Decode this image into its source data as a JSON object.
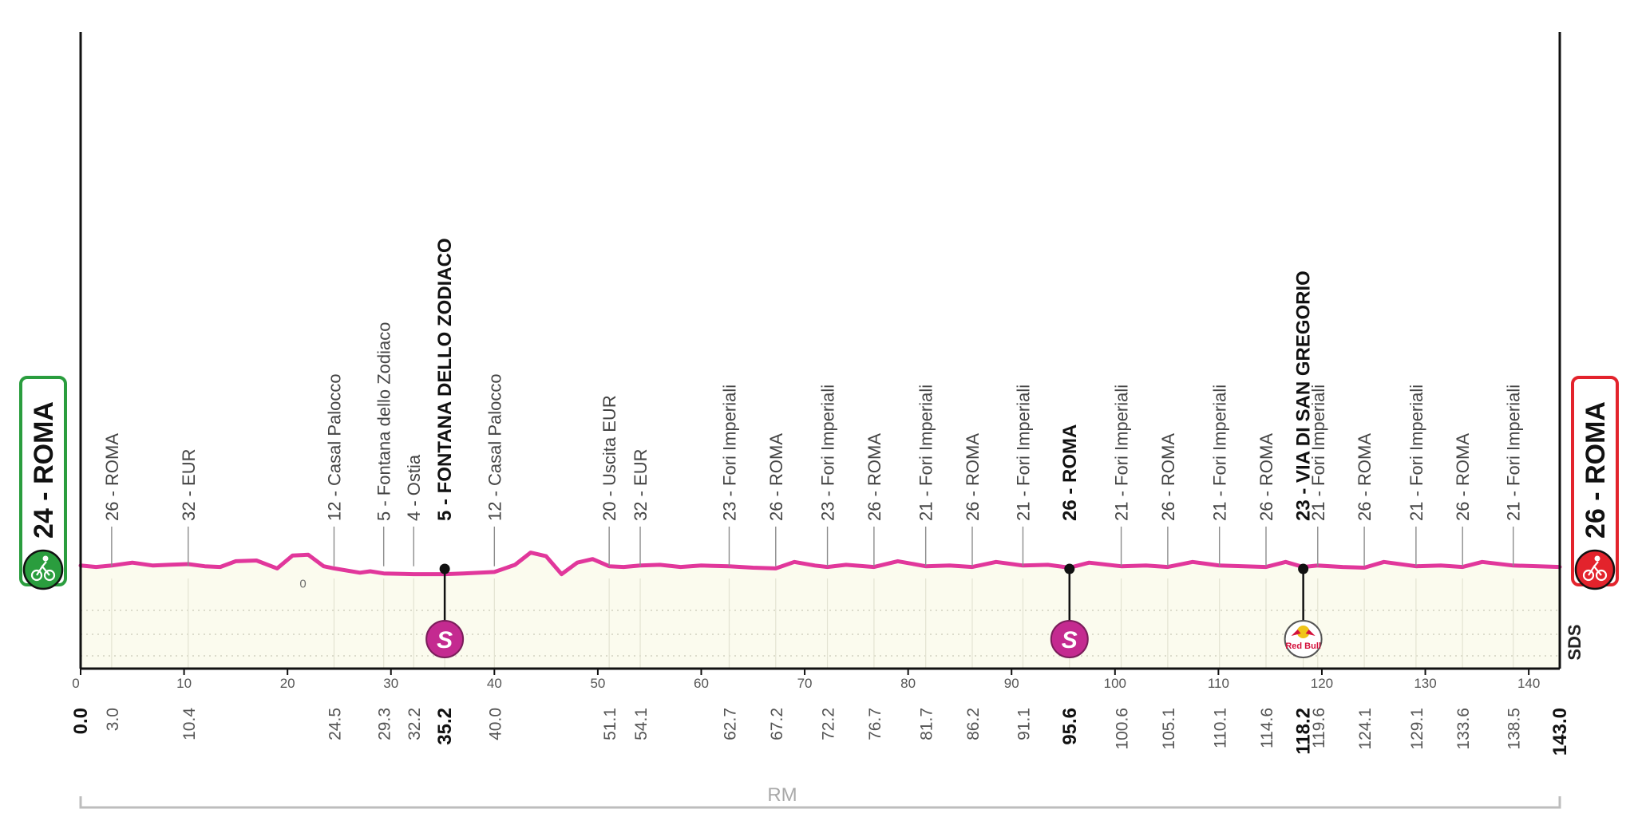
{
  "chart_data": {
    "type": "area",
    "title": "",
    "xlim": [
      0,
      143
    ],
    "x_ticks": [
      0,
      10,
      20,
      30,
      40,
      50,
      60,
      70,
      80,
      90,
      100,
      110,
      120,
      130,
      140
    ],
    "region_label": "RM",
    "start": {
      "label": "24 - ROMA",
      "km": "0.0"
    },
    "finish": {
      "label": "26 - ROMA",
      "km": "143.0"
    },
    "baseline_label": "0",
    "colors": {
      "profile": "#e1379b",
      "area": "#fbfbee",
      "start": "#2a9d3e",
      "finish": "#e3232c",
      "intermediate": "#c42a90"
    },
    "profile_points": [
      {
        "x": 0,
        "y": 0.8
      },
      {
        "x": 1.5,
        "y": 0.6
      },
      {
        "x": 3,
        "y": 0.8
      },
      {
        "x": 5,
        "y": 1.2
      },
      {
        "x": 7,
        "y": 0.8
      },
      {
        "x": 8.5,
        "y": 0.9
      },
      {
        "x": 10.4,
        "y": 1.0
      },
      {
        "x": 12,
        "y": 0.7
      },
      {
        "x": 13.5,
        "y": 0.6
      },
      {
        "x": 15,
        "y": 1.4
      },
      {
        "x": 17,
        "y": 1.5
      },
      {
        "x": 19,
        "y": 0.4
      },
      {
        "x": 20.5,
        "y": 2.2
      },
      {
        "x": 22,
        "y": 2.3
      },
      {
        "x": 23.5,
        "y": 0.7
      },
      {
        "x": 24.5,
        "y": 0.4
      },
      {
        "x": 27,
        "y": -0.2
      },
      {
        "x": 28,
        "y": 0
      },
      {
        "x": 29.3,
        "y": -0.3
      },
      {
        "x": 32.2,
        "y": -0.4
      },
      {
        "x": 35.2,
        "y": -0.4
      },
      {
        "x": 37,
        "y": -0.3
      },
      {
        "x": 40,
        "y": -0.1
      },
      {
        "x": 42,
        "y": 0.9
      },
      {
        "x": 43.5,
        "y": 2.6
      },
      {
        "x": 45,
        "y": 2.1
      },
      {
        "x": 46.5,
        "y": -0.4
      },
      {
        "x": 48,
        "y": 1.2
      },
      {
        "x": 49.5,
        "y": 1.7
      },
      {
        "x": 51.1,
        "y": 0.7
      },
      {
        "x": 52.5,
        "y": 0.6
      },
      {
        "x": 54.1,
        "y": 0.8
      },
      {
        "x": 56,
        "y": 0.9
      },
      {
        "x": 58,
        "y": 0.6
      },
      {
        "x": 60,
        "y": 0.8
      },
      {
        "x": 62.7,
        "y": 0.7
      },
      {
        "x": 65,
        "y": 0.5
      },
      {
        "x": 67.2,
        "y": 0.4
      },
      {
        "x": 69,
        "y": 1.3
      },
      {
        "x": 71,
        "y": 0.8
      },
      {
        "x": 72.2,
        "y": 0.6
      },
      {
        "x": 74,
        "y": 0.9
      },
      {
        "x": 76.7,
        "y": 0.6
      },
      {
        "x": 79,
        "y": 1.4
      },
      {
        "x": 81.7,
        "y": 0.7
      },
      {
        "x": 84,
        "y": 0.8
      },
      {
        "x": 86.2,
        "y": 0.6
      },
      {
        "x": 88.5,
        "y": 1.3
      },
      {
        "x": 91.1,
        "y": 0.8
      },
      {
        "x": 93.5,
        "y": 0.9
      },
      {
        "x": 95.6,
        "y": 0.5
      },
      {
        "x": 97.5,
        "y": 1.2
      },
      {
        "x": 100.6,
        "y": 0.7
      },
      {
        "x": 103,
        "y": 0.8
      },
      {
        "x": 105.1,
        "y": 0.6
      },
      {
        "x": 107.5,
        "y": 1.3
      },
      {
        "x": 110.1,
        "y": 0.8
      },
      {
        "x": 112.5,
        "y": 0.7
      },
      {
        "x": 114.6,
        "y": 0.6
      },
      {
        "x": 116.5,
        "y": 1.3
      },
      {
        "x": 118.2,
        "y": 0.6
      },
      {
        "x": 119.6,
        "y": 0.8
      },
      {
        "x": 122,
        "y": 0.6
      },
      {
        "x": 124.1,
        "y": 0.5
      },
      {
        "x": 126,
        "y": 1.3
      },
      {
        "x": 129.1,
        "y": 0.7
      },
      {
        "x": 131.5,
        "y": 0.8
      },
      {
        "x": 133.6,
        "y": 0.6
      },
      {
        "x": 135.5,
        "y": 1.3
      },
      {
        "x": 138.5,
        "y": 0.8
      },
      {
        "x": 141,
        "y": 0.7
      },
      {
        "x": 143,
        "y": 0.6
      }
    ],
    "points": [
      {
        "km": "3.0",
        "label": "26 - ROMA"
      },
      {
        "km": "10.4",
        "label": "32 - EUR"
      },
      {
        "km": "24.5",
        "label": "12 - Casal Palocco"
      },
      {
        "km": "29.3",
        "label": "5 - Fontana dello Zodiaco"
      },
      {
        "km": "32.2",
        "label": "4 - Ostia"
      },
      {
        "km": "35.2",
        "label": "5 - FONTANA DELLO ZODIACO",
        "bold": true,
        "marker": "S"
      },
      {
        "km": "40.0",
        "label": "12 - Casal Palocco"
      },
      {
        "km": "51.1",
        "label": "20 - Uscita EUR"
      },
      {
        "km": "54.1",
        "label": "32 - EUR"
      },
      {
        "km": "62.7",
        "label": "23 - Fori Imperiali"
      },
      {
        "km": "67.2",
        "label": "26 - ROMA"
      },
      {
        "km": "72.2",
        "label": "23 - Fori Imperiali"
      },
      {
        "km": "76.7",
        "label": "26 - ROMA"
      },
      {
        "km": "81.7",
        "label": "21 - Fori Imperiali"
      },
      {
        "km": "86.2",
        "label": "26 - ROMA"
      },
      {
        "km": "91.1",
        "label": "21 - Fori Imperiali"
      },
      {
        "km": "95.6",
        "label": "26 - ROMA",
        "bold": true,
        "marker": "S"
      },
      {
        "km": "100.6",
        "label": "21 - Fori Imperiali"
      },
      {
        "km": "105.1",
        "label": "26 - ROMA"
      },
      {
        "km": "110.1",
        "label": "21 - Fori Imperiali"
      },
      {
        "km": "114.6",
        "label": "26 - ROMA"
      },
      {
        "km": "118.2",
        "label": "23 - VIA DI SAN GREGORIO",
        "bold": true,
        "marker": "Red Bull"
      },
      {
        "km": "119.6",
        "label": "21 - Fori Imperiali"
      },
      {
        "km": "124.1",
        "label": "26 - ROMA"
      },
      {
        "km": "129.1",
        "label": "21 - Fori Imperiali"
      },
      {
        "km": "133.6",
        "label": "26 - ROMA"
      },
      {
        "km": "138.5",
        "label": "21 - Fori Imperiali"
      }
    ],
    "logo_text": "SDS"
  }
}
